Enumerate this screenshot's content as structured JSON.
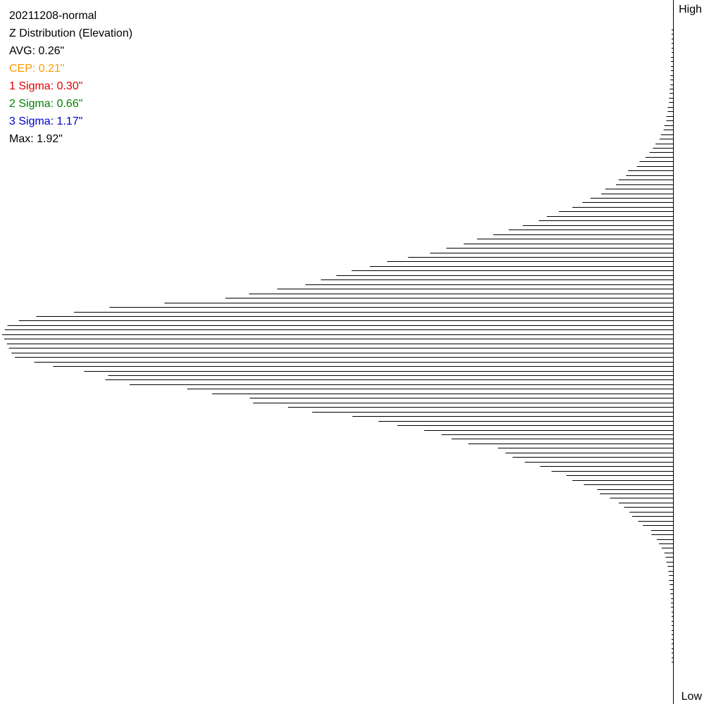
{
  "stats": {
    "name": "20211208-normal",
    "subtitle": "Z Distribution (Elevation)",
    "avg": "AVG: 0.26\"",
    "cep": "CEP: 0.21\"",
    "sigma1": "1 Sigma: 0.30\"",
    "sigma2": "2 Sigma: 0.66\"",
    "sigma3": "3 Sigma: 1.17\"",
    "max": "Max: 1.92\""
  },
  "colors": {
    "text": "#000000",
    "cep": "#ff9900",
    "sigma1": "#e00000",
    "sigma2": "#008000",
    "sigma3": "#0000cc",
    "bars": "#000000"
  },
  "axis": {
    "high_label": "High",
    "low_label": "Low"
  },
  "chart_data": {
    "type": "bar",
    "orientation": "horizontal",
    "x_range": [
      0,
      1
    ],
    "y_direction": "High at top, Low at bottom",
    "values_top_to_bottom": [
      0.001,
      0.001,
      0.002,
      0.002,
      0.002,
      0.002,
      0.003,
      0.003,
      0.003,
      0.003,
      0.004,
      0.004,
      0.004,
      0.005,
      0.005,
      0.006,
      0.006,
      0.008,
      0.008,
      0.01,
      0.01,
      0.013,
      0.014,
      0.018,
      0.02,
      0.026,
      0.03,
      0.035,
      0.041,
      0.05,
      0.054,
      0.067,
      0.07,
      0.081,
      0.085,
      0.101,
      0.107,
      0.123,
      0.135,
      0.15,
      0.17,
      0.188,
      0.2,
      0.224,
      0.245,
      0.268,
      0.292,
      0.312,
      0.338,
      0.362,
      0.395,
      0.426,
      0.452,
      0.479,
      0.502,
      0.525,
      0.548,
      0.59,
      0.632,
      0.667,
      0.758,
      0.84,
      0.893,
      0.949,
      0.975,
      0.992,
      0.996,
      1.0,
      0.997,
      0.993,
      0.99,
      0.986,
      0.981,
      0.952,
      0.924,
      0.878,
      0.842,
      0.846,
      0.81,
      0.724,
      0.687,
      0.631,
      0.626,
      0.574,
      0.538,
      0.478,
      0.439,
      0.411,
      0.371,
      0.345,
      0.33,
      0.305,
      0.261,
      0.25,
      0.239,
      0.221,
      0.198,
      0.181,
      0.159,
      0.15,
      0.133,
      0.113,
      0.109,
      0.094,
      0.081,
      0.073,
      0.065,
      0.061,
      0.052,
      0.045,
      0.033,
      0.032,
      0.024,
      0.021,
      0.017,
      0.013,
      0.011,
      0.01,
      0.008,
      0.007,
      0.006,
      0.006,
      0.005,
      0.004,
      0.004,
      0.003,
      0.003,
      0.003,
      0.002,
      0.002,
      0.002,
      0.002,
      0.001,
      0.001,
      0.001,
      0.001,
      0.001,
      0.001,
      0.001,
      0.001
    ]
  }
}
